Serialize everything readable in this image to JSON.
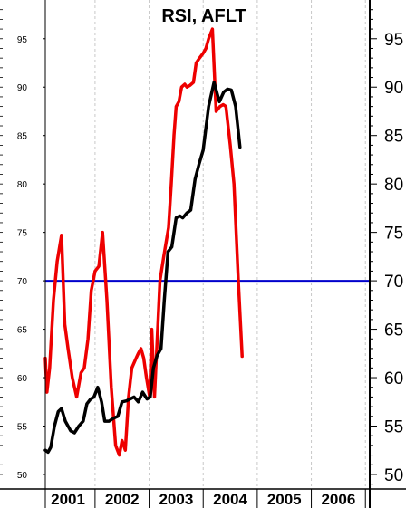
{
  "chart_data": {
    "type": "line",
    "title": "RSI, AFLT",
    "xlabel": "",
    "ylabel": "",
    "xlim": [
      2000.58,
      2006.58
    ],
    "ylim": [
      48.5,
      99
    ],
    "y_ticks": [
      50,
      55,
      60,
      65,
      70,
      75,
      80,
      85,
      90,
      95
    ],
    "y_tick_labels": [
      "50",
      "55",
      "60",
      "65",
      "70",
      "75",
      "80",
      "85",
      "90",
      "95"
    ],
    "x_tick_labels": [
      "2001",
      "2002",
      "2003",
      "2004",
      "2005",
      "2006"
    ],
    "x_label_positions": [
      2001.0,
      2002.0,
      2003.0,
      2004.0,
      2005.0,
      2006.0
    ],
    "x_grid_positions": [
      2001.5,
      2002.5,
      2003.5,
      2004.5,
      2005.5,
      2006.5
    ],
    "x_boundary_positions": [
      2001.5,
      2002.5,
      2003.5,
      2004.5,
      2005.5,
      2006.5
    ],
    "grid": "vertical dashed",
    "reference_line": {
      "value": 70,
      "color": "#0000cc"
    },
    "series": [
      {
        "color": "#ee0000",
        "x": [
          2000.58,
          2000.61,
          2000.66,
          2000.73,
          2000.8,
          2000.88,
          2000.94,
          2001.0,
          2001.08,
          2001.16,
          2001.24,
          2001.3,
          2001.37,
          2001.43,
          2001.5,
          2001.57,
          2001.64,
          2001.72,
          2001.8,
          2001.88,
          2001.95,
          2002.0,
          2002.06,
          2002.12,
          2002.18,
          2002.26,
          2002.3,
          2002.35,
          2002.4,
          2002.45,
          2002.51,
          2002.55,
          2002.6,
          2002.7,
          2002.77,
          2002.86,
          2002.91,
          2002.96,
          2003.0,
          2003.05,
          2003.1,
          2003.16,
          2003.2,
          2003.26,
          2003.32,
          2003.37,
          2003.43,
          2003.5,
          2003.55,
          2003.6,
          2003.67,
          2003.74,
          2003.81,
          2003.87,
          2003.92,
          2004.0,
          2004.07,
          2004.15,
          2004.22,
          2004.3,
          2004.4,
          2004.53,
          2004.6,
          2004.69,
          2004.75,
          2004.84,
          2004.93,
          2004.98,
          2005.08,
          2005.17,
          2005.22,
          2005.3,
          2005.38,
          2005.47,
          2005.55,
          2005.59,
          2005.61,
          2005.63
        ],
        "y": [
          62,
          58.5,
          61,
          68,
          72,
          74.7,
          65.5,
          63,
          60,
          58,
          60.5,
          61,
          64,
          69,
          71,
          71.5,
          75,
          68,
          59,
          53,
          52,
          53.5,
          52.5,
          58,
          61,
          62,
          62.5,
          63,
          62,
          60,
          58,
          65,
          58,
          70,
          72.5,
          75.5,
          80,
          85,
          88,
          88.5,
          90,
          90.3,
          90,
          90.2,
          90.5,
          92.5,
          93,
          93.5,
          94,
          95,
          96,
          87.5,
          88,
          88.2,
          88,
          84,
          80,
          70,
          62.2,
          null,
          null,
          null,
          null,
          null,
          null,
          null,
          null,
          null,
          null,
          null,
          null,
          null,
          null,
          null,
          null,
          null,
          null,
          null
        ]
      },
      {
        "color": "#000000",
        "x": [
          2000.58,
          2000.63,
          2000.68,
          2000.75,
          2000.82,
          2000.88,
          2000.95,
          2001.05,
          2001.12,
          2001.2,
          2001.28,
          2001.35,
          2001.42,
          2001.48,
          2001.55,
          2001.62,
          2001.68,
          2001.76,
          2001.84,
          2001.92,
          2002.0,
          2002.08,
          2002.15,
          2002.22,
          2002.3,
          2002.38,
          2002.46,
          2002.52,
          2002.58,
          2002.65,
          2002.72,
          2002.78,
          2002.85,
          2002.92,
          2003.0,
          2003.07,
          2003.12,
          2003.2,
          2003.27,
          2003.35,
          2003.42,
          2003.5,
          2003.6,
          2003.7,
          2003.8,
          2003.88,
          2003.95,
          2004.02,
          2004.1,
          2004.18,
          2004.25,
          2004.3,
          2004.35,
          2004.42,
          2004.52,
          2004.58,
          2004.66,
          2004.74,
          2004.82,
          2004.9,
          2004.96,
          2005.02,
          2005.1,
          2005.18,
          2005.25,
          2005.32,
          2005.37,
          2005.42,
          2005.46,
          2005.5,
          2005.55,
          2005.6,
          2005.63
        ],
        "y": [
          52.5,
          52.3,
          52.8,
          55,
          56.5,
          56.8,
          55.5,
          54.5,
          54.3,
          55,
          55.5,
          57.3,
          57.8,
          58,
          59,
          57.5,
          55.5,
          55.5,
          55.8,
          56,
          57.5,
          57.6,
          57.8,
          58,
          57.5,
          58.5,
          57.8,
          58,
          61,
          62.3,
          63,
          68,
          73,
          73.5,
          76.5,
          76.7,
          76.5,
          77,
          77.3,
          80.5,
          82,
          83.5,
          88,
          90.5,
          88.5,
          89.5,
          89.8,
          89.7,
          88,
          83.8,
          null,
          null,
          null,
          null,
          null,
          null,
          null,
          null,
          null,
          null,
          null,
          null,
          null,
          null,
          null,
          null,
          null,
          null,
          null,
          null,
          null,
          null,
          null
        ]
      }
    ]
  }
}
